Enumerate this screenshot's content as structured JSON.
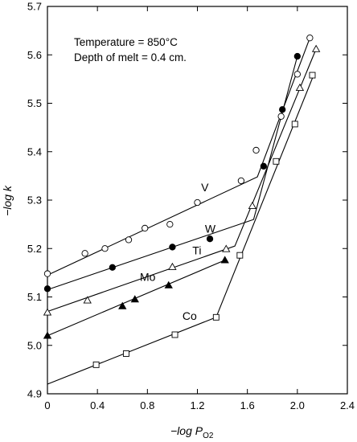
{
  "chart_data": {
    "type": "scatter",
    "xlabel": "−log P",
    "xlabel_sub": "O2",
    "ylabel": "−log k",
    "xlim": [
      0,
      2.4
    ],
    "ylim": [
      4.9,
      5.7
    ],
    "xticks": [
      "0",
      "0.4",
      "0.8",
      "1.2",
      "1.6",
      "2.0",
      "2.4"
    ],
    "xtick_values": [
      0,
      0.4,
      0.8,
      1.2,
      1.6,
      2.0,
      2.4
    ],
    "yticks": [
      "4.9",
      "5.0",
      "5.1",
      "5.2",
      "5.3",
      "5.4",
      "5.5",
      "5.6",
      "5.7"
    ],
    "ytick_values": [
      4.9,
      5.0,
      5.1,
      5.2,
      5.3,
      5.4,
      5.5,
      5.6,
      5.7
    ],
    "annotations": [
      "Temperature = 850°C",
      "Depth of melt = 0.4 cm."
    ],
    "series": [
      {
        "name": "V",
        "marker": "open-circle",
        "points": [
          [
            0,
            5.148
          ],
          [
            0.3,
            5.19
          ],
          [
            0.46,
            5.2
          ],
          [
            0.65,
            5.218
          ],
          [
            0.78,
            5.242
          ],
          [
            0.98,
            5.25
          ],
          [
            1.2,
            5.295
          ],
          [
            1.55,
            5.34
          ],
          [
            1.67,
            5.403
          ],
          [
            1.87,
            5.473
          ],
          [
            2.0,
            5.56
          ],
          [
            2.1,
            5.635
          ]
        ],
        "fit": [
          [
            0,
            5.145
          ],
          [
            1.68,
            5.348
          ],
          [
            2.1,
            5.635
          ]
        ],
        "label_at": [
          1.23,
          5.318
        ]
      },
      {
        "name": "W",
        "marker": "filled-circle",
        "points": [
          [
            0,
            5.117
          ],
          [
            0.52,
            5.161
          ],
          [
            1.0,
            5.203
          ],
          [
            1.3,
            5.22
          ],
          [
            1.73,
            5.37
          ],
          [
            1.88,
            5.487
          ],
          [
            2.0,
            5.597
          ]
        ],
        "fit": [
          [
            0,
            5.115
          ],
          [
            1.65,
            5.26
          ],
          [
            2.0,
            5.597
          ]
        ],
        "label_at": [
          1.26,
          5.233
        ]
      },
      {
        "name": "Ti",
        "marker": "open-triangle",
        "points": [
          [
            0,
            5.068
          ],
          [
            0.32,
            5.093
          ],
          [
            1.0,
            5.162
          ],
          [
            1.43,
            5.199
          ],
          [
            1.64,
            5.288
          ],
          [
            2.02,
            5.532
          ],
          [
            2.15,
            5.612
          ]
        ],
        "fit": [
          [
            0,
            5.07
          ],
          [
            1.5,
            5.205
          ],
          [
            2.15,
            5.612
          ]
        ],
        "label_at": [
          1.16,
          5.188
        ]
      },
      {
        "name": "Mo",
        "marker": "filled-triangle",
        "points": [
          [
            0,
            5.02
          ],
          [
            0.6,
            5.081
          ],
          [
            0.7,
            5.095
          ],
          [
            0.97,
            5.124
          ],
          [
            1.42,
            5.176
          ]
        ],
        "fit": [
          [
            0,
            5.02
          ],
          [
            1.42,
            5.176
          ]
        ],
        "label_at": [
          0.74,
          5.133
        ]
      },
      {
        "name": "Co",
        "marker": "open-square",
        "points": [
          [
            0.39,
            4.96
          ],
          [
            0.63,
            4.983
          ],
          [
            1.02,
            5.022
          ],
          [
            1.35,
            5.058
          ],
          [
            1.54,
            5.186
          ],
          [
            1.83,
            5.38
          ],
          [
            1.98,
            5.457
          ],
          [
            2.12,
            5.558
          ]
        ],
        "fit": [
          [
            0,
            4.92
          ],
          [
            1.35,
            5.058
          ],
          [
            2.13,
            5.558
          ]
        ],
        "label_at": [
          1.08,
          5.053
        ]
      }
    ]
  }
}
